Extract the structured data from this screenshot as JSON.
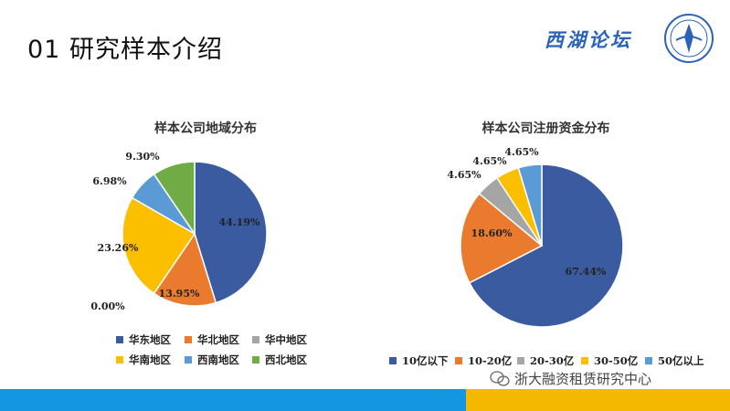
{
  "slide": {
    "title": "01 研究样本介绍",
    "logo_text": "西湖论坛",
    "watermark": "浙大融资租赁研究中心"
  },
  "colors": {
    "dark_blue": "#3a5ba0",
    "orange": "#ea7a2e",
    "gray": "#a5a5a5",
    "yellow": "#fcbf00",
    "light_blue": "#5a9bd5",
    "green": "#6fac45",
    "footer_blue": "#1596e0",
    "footer_yellow": "#f5b800"
  },
  "chart_data": [
    {
      "type": "pie",
      "title": "样本公司地域分布",
      "categories": [
        "华东地区",
        "华北地区",
        "华中地区",
        "华南地区",
        "西南地区",
        "西北地区"
      ],
      "values": [
        44.19,
        13.95,
        0.0,
        23.26,
        6.98,
        9.3
      ],
      "labels": [
        "44.19%",
        "13.95%",
        "0.00%",
        "23.26%",
        "6.98%",
        "9.30%"
      ],
      "colors": [
        "#3a5ba0",
        "#ea7a2e",
        "#a5a5a5",
        "#fcbf00",
        "#5a9bd5",
        "#6fac45"
      ],
      "legend": "bottom"
    },
    {
      "type": "pie",
      "title": "样本公司注册资金分布",
      "categories": [
        "10亿以下",
        "10-20亿",
        "20-30亿",
        "30-50亿",
        "50亿以上"
      ],
      "values": [
        67.44,
        18.6,
        4.65,
        4.65,
        4.65
      ],
      "labels": [
        "67.44%",
        "18.60%",
        "4.65%",
        "4.65%",
        "4.65%"
      ],
      "colors": [
        "#3a5ba0",
        "#ea7a2e",
        "#a5a5a5",
        "#fcbf00",
        "#5a9bd5"
      ],
      "legend": "bottom"
    }
  ]
}
